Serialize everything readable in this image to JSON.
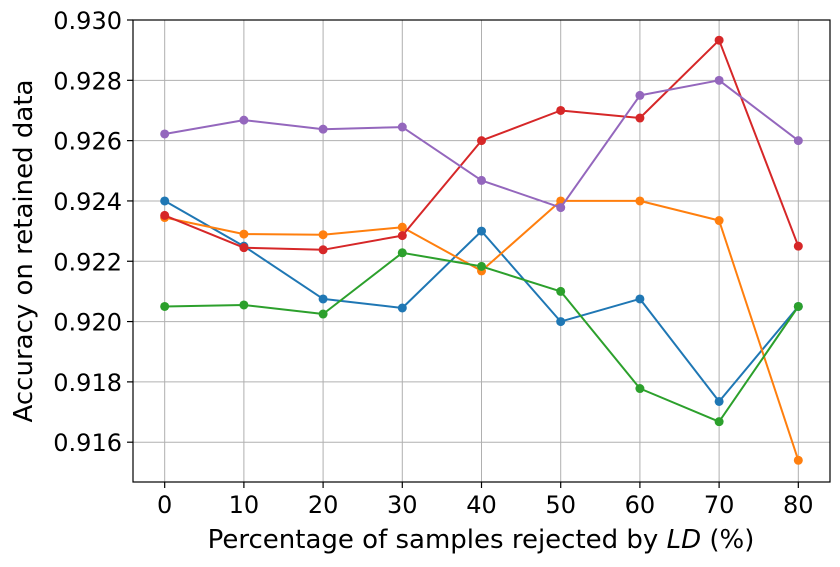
{
  "chart_data": {
    "type": "line",
    "xlabel_prefix": "Percentage of samples rejected by ",
    "xlabel_italic": "LD",
    "xlabel_suffix": " (%)",
    "ylabel": "Accuracy on retained data",
    "x": [
      0,
      10,
      20,
      30,
      40,
      50,
      60,
      70,
      80
    ],
    "xlim": [
      -4,
      84
    ],
    "ylim": [
      0.91468,
      0.93
    ],
    "x_ticks": [
      0,
      10,
      20,
      30,
      40,
      50,
      60,
      70,
      80
    ],
    "y_ticks": [
      0.916,
      0.918,
      0.92,
      0.922,
      0.924,
      0.926,
      0.928,
      0.93
    ],
    "y_tick_labels": [
      "0.916",
      "0.918",
      "0.920",
      "0.922",
      "0.924",
      "0.926",
      "0.928",
      "0.930"
    ],
    "grid": true,
    "series": [
      {
        "color": "#1f77b4",
        "values": [
          0.924,
          0.9225,
          0.92075,
          0.92045,
          0.923,
          0.92,
          0.92075,
          0.91735,
          0.9205
        ]
      },
      {
        "color": "#ff7f0e",
        "values": [
          0.92345,
          0.9229,
          0.92288,
          0.92313,
          0.92168,
          0.924,
          0.924,
          0.92335,
          0.9154
        ]
      },
      {
        "color": "#2ca02c",
        "values": [
          0.9205,
          0.92055,
          0.92025,
          0.92228,
          0.92183,
          0.921,
          0.91778,
          0.91668,
          0.9205
        ]
      },
      {
        "color": "#d62728",
        "values": [
          0.92352,
          0.92245,
          0.92238,
          0.92285,
          0.926,
          0.927,
          0.92675,
          0.92933,
          0.9225
        ]
      },
      {
        "color": "#9467bd",
        "values": [
          0.92622,
          0.92668,
          0.92638,
          0.92645,
          0.92468,
          0.92378,
          0.9275,
          0.928,
          0.926
        ]
      }
    ]
  }
}
